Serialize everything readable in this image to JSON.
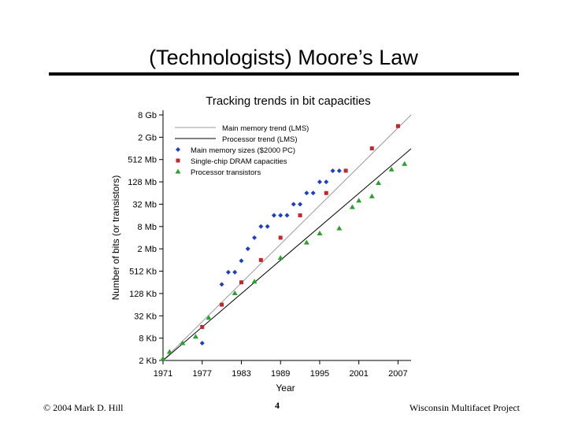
{
  "slide": {
    "title": "(Technologists) Moore’s Law",
    "footer_left": "© 2004 Mark D. Hill",
    "footer_center": "4",
    "footer_right": "Wisconsin Multifacet Project"
  },
  "chart_data": {
    "type": "scatter",
    "title": "Tracking trends in bit capacities",
    "xlabel": "Year",
    "ylabel": "Number of bits (or transistors)",
    "x_range": [
      1971,
      2009
    ],
    "x_ticks": [
      1971,
      1977,
      1983,
      1989,
      1995,
      2001,
      2007
    ],
    "y_scale": "log2",
    "y_range_bits": [
      2048,
      8589934592
    ],
    "y_ticks": [
      {
        "label": "2 Kb",
        "value": 2048
      },
      {
        "label": "8 Kb",
        "value": 8192
      },
      {
        "label": "32 Kb",
        "value": 32768
      },
      {
        "label": "128 Kb",
        "value": 131072
      },
      {
        "label": "512 Kb",
        "value": 524288
      },
      {
        "label": "2 Mb",
        "value": 2097152
      },
      {
        "label": "8 Mb",
        "value": 8388608
      },
      {
        "label": "32 Mb",
        "value": 33554432
      },
      {
        "label": "128 Mb",
        "value": 134217728
      },
      {
        "label": "512 Mb",
        "value": 536870912
      },
      {
        "label": "2 Gb",
        "value": 2147483648
      },
      {
        "label": "8 Gb",
        "value": 8589934592
      }
    ],
    "legend_position": "top-left",
    "trend_lines": [
      {
        "name": "Main memory trend (LMS)",
        "color": "#9a9a9a",
        "points": [
          [
            1971,
            2048
          ],
          [
            2009,
            8589934592
          ]
        ]
      },
      {
        "name": "Processor trend (LMS)",
        "color": "#000000",
        "points": [
          [
            1971,
            2048
          ],
          [
            2009,
            1048576000
          ]
        ]
      }
    ],
    "series": [
      {
        "name": "Main memory sizes ($2000 PC)",
        "color": "#1f3fbf",
        "marker": "diamond",
        "points": [
          [
            1977,
            6000
          ],
          [
            1980,
            230000
          ],
          [
            1981,
            490000
          ],
          [
            1982,
            490000
          ],
          [
            1983,
            1000000
          ],
          [
            1984,
            2100000
          ],
          [
            1985,
            4200000
          ],
          [
            1986,
            8400000
          ],
          [
            1987,
            8400000
          ],
          [
            1988,
            16800000
          ],
          [
            1989,
            16800000
          ],
          [
            1990,
            16800000
          ],
          [
            1991,
            33500000
          ],
          [
            1992,
            33500000
          ],
          [
            1993,
            67000000
          ],
          [
            1994,
            67000000
          ],
          [
            1995,
            134000000
          ],
          [
            1996,
            134000000
          ],
          [
            1997,
            268000000
          ],
          [
            1998,
            268000000
          ]
        ]
      },
      {
        "name": "Single-chip DRAM capacities",
        "color": "#c0262c",
        "marker": "square",
        "points": [
          [
            1977,
            16384
          ],
          [
            1980,
            65536
          ],
          [
            1983,
            262144
          ],
          [
            1986,
            1048576
          ],
          [
            1989,
            4194304
          ],
          [
            1992,
            16777216
          ],
          [
            1996,
            67108864
          ],
          [
            1999,
            268435456
          ],
          [
            2003,
            1073741824
          ],
          [
            2007,
            4294967296
          ]
        ]
      },
      {
        "name": "Processor transistors",
        "color": "#2ca02c",
        "marker": "triangle",
        "points": [
          [
            1971,
            2300
          ],
          [
            1972,
            3500
          ],
          [
            1974,
            6000
          ],
          [
            1976,
            9000
          ],
          [
            1978,
            29000
          ],
          [
            1982,
            134000
          ],
          [
            1985,
            275000
          ],
          [
            1989,
            1200000
          ],
          [
            1993,
            3100000
          ],
          [
            1995,
            5500000
          ],
          [
            1998,
            7500000
          ],
          [
            2000,
            28000000
          ],
          [
            2001,
            42000000
          ],
          [
            2003,
            55000000
          ],
          [
            2004,
            125000000
          ],
          [
            2006,
            291000000
          ],
          [
            2008,
            410000000
          ]
        ]
      }
    ]
  }
}
